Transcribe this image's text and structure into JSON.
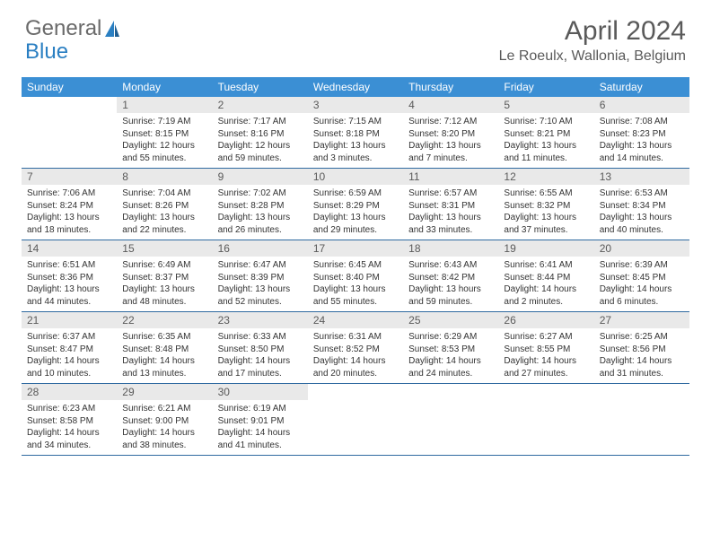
{
  "logo": {
    "word1": "General",
    "word2": "Blue"
  },
  "title": "April 2024",
  "location": "Le Roeulx, Wallonia, Belgium",
  "colors": {
    "header_bg": "#3b8fd4",
    "daynum_bg": "#e9e9e9",
    "week_border": "#2f6aa0",
    "text_muted": "#5a5a5a",
    "logo_blue": "#2a7fc2"
  },
  "dow": [
    "Sunday",
    "Monday",
    "Tuesday",
    "Wednesday",
    "Thursday",
    "Friday",
    "Saturday"
  ],
  "weeks": [
    [
      {
        "n": "",
        "l": []
      },
      {
        "n": "1",
        "l": [
          "Sunrise: 7:19 AM",
          "Sunset: 8:15 PM",
          "Daylight: 12 hours",
          "and 55 minutes."
        ]
      },
      {
        "n": "2",
        "l": [
          "Sunrise: 7:17 AM",
          "Sunset: 8:16 PM",
          "Daylight: 12 hours",
          "and 59 minutes."
        ]
      },
      {
        "n": "3",
        "l": [
          "Sunrise: 7:15 AM",
          "Sunset: 8:18 PM",
          "Daylight: 13 hours",
          "and 3 minutes."
        ]
      },
      {
        "n": "4",
        "l": [
          "Sunrise: 7:12 AM",
          "Sunset: 8:20 PM",
          "Daylight: 13 hours",
          "and 7 minutes."
        ]
      },
      {
        "n": "5",
        "l": [
          "Sunrise: 7:10 AM",
          "Sunset: 8:21 PM",
          "Daylight: 13 hours",
          "and 11 minutes."
        ]
      },
      {
        "n": "6",
        "l": [
          "Sunrise: 7:08 AM",
          "Sunset: 8:23 PM",
          "Daylight: 13 hours",
          "and 14 minutes."
        ]
      }
    ],
    [
      {
        "n": "7",
        "l": [
          "Sunrise: 7:06 AM",
          "Sunset: 8:24 PM",
          "Daylight: 13 hours",
          "and 18 minutes."
        ]
      },
      {
        "n": "8",
        "l": [
          "Sunrise: 7:04 AM",
          "Sunset: 8:26 PM",
          "Daylight: 13 hours",
          "and 22 minutes."
        ]
      },
      {
        "n": "9",
        "l": [
          "Sunrise: 7:02 AM",
          "Sunset: 8:28 PM",
          "Daylight: 13 hours",
          "and 26 minutes."
        ]
      },
      {
        "n": "10",
        "l": [
          "Sunrise: 6:59 AM",
          "Sunset: 8:29 PM",
          "Daylight: 13 hours",
          "and 29 minutes."
        ]
      },
      {
        "n": "11",
        "l": [
          "Sunrise: 6:57 AM",
          "Sunset: 8:31 PM",
          "Daylight: 13 hours",
          "and 33 minutes."
        ]
      },
      {
        "n": "12",
        "l": [
          "Sunrise: 6:55 AM",
          "Sunset: 8:32 PM",
          "Daylight: 13 hours",
          "and 37 minutes."
        ]
      },
      {
        "n": "13",
        "l": [
          "Sunrise: 6:53 AM",
          "Sunset: 8:34 PM",
          "Daylight: 13 hours",
          "and 40 minutes."
        ]
      }
    ],
    [
      {
        "n": "14",
        "l": [
          "Sunrise: 6:51 AM",
          "Sunset: 8:36 PM",
          "Daylight: 13 hours",
          "and 44 minutes."
        ]
      },
      {
        "n": "15",
        "l": [
          "Sunrise: 6:49 AM",
          "Sunset: 8:37 PM",
          "Daylight: 13 hours",
          "and 48 minutes."
        ]
      },
      {
        "n": "16",
        "l": [
          "Sunrise: 6:47 AM",
          "Sunset: 8:39 PM",
          "Daylight: 13 hours",
          "and 52 minutes."
        ]
      },
      {
        "n": "17",
        "l": [
          "Sunrise: 6:45 AM",
          "Sunset: 8:40 PM",
          "Daylight: 13 hours",
          "and 55 minutes."
        ]
      },
      {
        "n": "18",
        "l": [
          "Sunrise: 6:43 AM",
          "Sunset: 8:42 PM",
          "Daylight: 13 hours",
          "and 59 minutes."
        ]
      },
      {
        "n": "19",
        "l": [
          "Sunrise: 6:41 AM",
          "Sunset: 8:44 PM",
          "Daylight: 14 hours",
          "and 2 minutes."
        ]
      },
      {
        "n": "20",
        "l": [
          "Sunrise: 6:39 AM",
          "Sunset: 8:45 PM",
          "Daylight: 14 hours",
          "and 6 minutes."
        ]
      }
    ],
    [
      {
        "n": "21",
        "l": [
          "Sunrise: 6:37 AM",
          "Sunset: 8:47 PM",
          "Daylight: 14 hours",
          "and 10 minutes."
        ]
      },
      {
        "n": "22",
        "l": [
          "Sunrise: 6:35 AM",
          "Sunset: 8:48 PM",
          "Daylight: 14 hours",
          "and 13 minutes."
        ]
      },
      {
        "n": "23",
        "l": [
          "Sunrise: 6:33 AM",
          "Sunset: 8:50 PM",
          "Daylight: 14 hours",
          "and 17 minutes."
        ]
      },
      {
        "n": "24",
        "l": [
          "Sunrise: 6:31 AM",
          "Sunset: 8:52 PM",
          "Daylight: 14 hours",
          "and 20 minutes."
        ]
      },
      {
        "n": "25",
        "l": [
          "Sunrise: 6:29 AM",
          "Sunset: 8:53 PM",
          "Daylight: 14 hours",
          "and 24 minutes."
        ]
      },
      {
        "n": "26",
        "l": [
          "Sunrise: 6:27 AM",
          "Sunset: 8:55 PM",
          "Daylight: 14 hours",
          "and 27 minutes."
        ]
      },
      {
        "n": "27",
        "l": [
          "Sunrise: 6:25 AM",
          "Sunset: 8:56 PM",
          "Daylight: 14 hours",
          "and 31 minutes."
        ]
      }
    ],
    [
      {
        "n": "28",
        "l": [
          "Sunrise: 6:23 AM",
          "Sunset: 8:58 PM",
          "Daylight: 14 hours",
          "and 34 minutes."
        ]
      },
      {
        "n": "29",
        "l": [
          "Sunrise: 6:21 AM",
          "Sunset: 9:00 PM",
          "Daylight: 14 hours",
          "and 38 minutes."
        ]
      },
      {
        "n": "30",
        "l": [
          "Sunrise: 6:19 AM",
          "Sunset: 9:01 PM",
          "Daylight: 14 hours",
          "and 41 minutes."
        ]
      },
      {
        "n": "",
        "l": []
      },
      {
        "n": "",
        "l": []
      },
      {
        "n": "",
        "l": []
      },
      {
        "n": "",
        "l": []
      }
    ]
  ]
}
